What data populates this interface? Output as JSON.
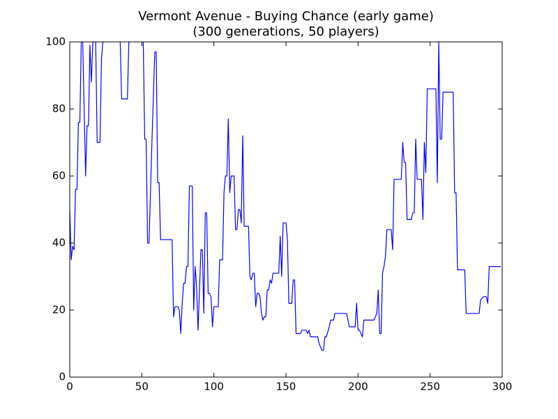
{
  "chart_data": {
    "type": "line",
    "title": "Vermont Avenue - Buying Chance (early game)",
    "subtitle": "(300 generations, 50 players)",
    "x": [
      0,
      1,
      2,
      3,
      4,
      5,
      6,
      7,
      8,
      9,
      11,
      12,
      13,
      14,
      15,
      16,
      18,
      19,
      21,
      22,
      23,
      24,
      34,
      35,
      36,
      40,
      41,
      42,
      50,
      51,
      52,
      53,
      54,
      55,
      57,
      59,
      60,
      61,
      62,
      63,
      71,
      72,
      73,
      75,
      76,
      77,
      78,
      79,
      80,
      81,
      82,
      83,
      85,
      86,
      87,
      88,
      89,
      91,
      92,
      93,
      94,
      95,
      96,
      97,
      98,
      99,
      100,
      103,
      104,
      106,
      107,
      108,
      109,
      110,
      111,
      112,
      114,
      115,
      116,
      117,
      118,
      119,
      120,
      121,
      124,
      125,
      126,
      127,
      128,
      129,
      130,
      131,
      132,
      133,
      134,
      135,
      136,
      137,
      138,
      139,
      140,
      141,
      145,
      146,
      147,
      148,
      150,
      151,
      152,
      154,
      155,
      156,
      157,
      160,
      161,
      164,
      165,
      166,
      167,
      172,
      173,
      175,
      176,
      177,
      178,
      180,
      181,
      183,
      184,
      192,
      194,
      198,
      199,
      200,
      201,
      203,
      204,
      211,
      213,
      214,
      215,
      216,
      217,
      218,
      219,
      220,
      223,
      224,
      225,
      230,
      231,
      232,
      233,
      234,
      237,
      238,
      239,
      240,
      241,
      244,
      245,
      246,
      247,
      248,
      254,
      255,
      256,
      257,
      258,
      259,
      266,
      267,
      268,
      269,
      274,
      275,
      284,
      285,
      287,
      289,
      290,
      291,
      299
    ],
    "series": [
      {
        "color": "#0000ff",
        "values": [
          50,
          35,
          39,
          38,
          56,
          56,
          76,
          76,
          100,
          100,
          60,
          75,
          75,
          99,
          88,
          100,
          100,
          70,
          70,
          95,
          100,
          105,
          105,
          100,
          83,
          83,
          100,
          105,
          105,
          100,
          71,
          71,
          40,
          40,
          70,
          97,
          97,
          58,
          58,
          41,
          41,
          18,
          21,
          21,
          20,
          13,
          22,
          28,
          28,
          33,
          33,
          57,
          57,
          20,
          33,
          27,
          14,
          38,
          38,
          19,
          49,
          49,
          25,
          25,
          24,
          15,
          21,
          21,
          35,
          35,
          55,
          60,
          60,
          77,
          55,
          60,
          60,
          44,
          44,
          50,
          50,
          46,
          72,
          45,
          45,
          30,
          29,
          31,
          31,
          21,
          25,
          25,
          24,
          19,
          17,
          18,
          18,
          26,
          26,
          29,
          28,
          31,
          31,
          42,
          30,
          46,
          46,
          41,
          22,
          22,
          29,
          29,
          13,
          13,
          14,
          14,
          13,
          14,
          12,
          12,
          10,
          8,
          8,
          12,
          12,
          15,
          17,
          17,
          19,
          19,
          15,
          15,
          22,
          14,
          14,
          12,
          17,
          17,
          19,
          26,
          13,
          13,
          31,
          33,
          36,
          44,
          44,
          38,
          59,
          59,
          70,
          64,
          64,
          47,
          47,
          49,
          49,
          71,
          59,
          59,
          47,
          70,
          61,
          86,
          86,
          58,
          100,
          71,
          71,
          85,
          85,
          55,
          55,
          32,
          32,
          19,
          19,
          23,
          24,
          24,
          22,
          33,
          33
        ]
      }
    ],
    "xlim": [
      0,
      300
    ],
    "ylim": [
      0,
      100
    ],
    "xticks": [
      0,
      50,
      100,
      150,
      200,
      250,
      300
    ],
    "yticks": [
      0,
      20,
      40,
      60,
      80,
      100
    ],
    "grid": false
  }
}
